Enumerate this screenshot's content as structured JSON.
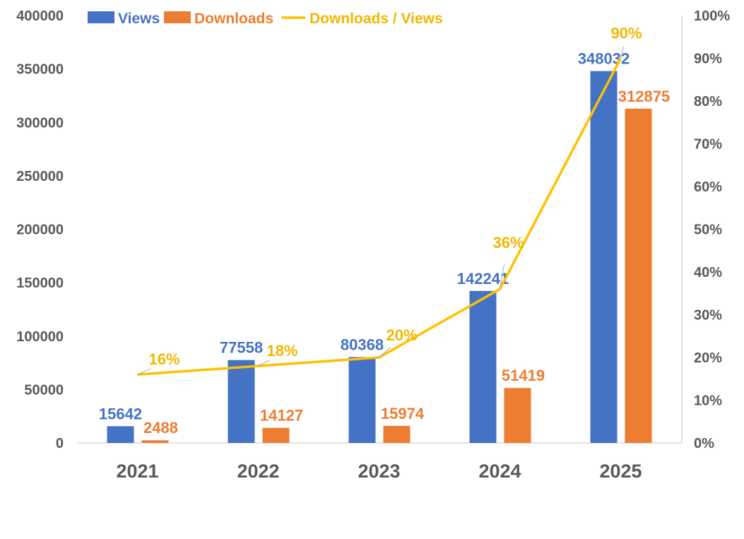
{
  "chart_data": {
    "type": "bar",
    "title": "",
    "categories": [
      "2021",
      "2022",
      "2023",
      "2024",
      "2025"
    ],
    "series": [
      {
        "name": "Views",
        "type": "bar",
        "axis": "left",
        "color": "#4472C4",
        "values": [
          15642,
          77558,
          80368,
          142241,
          348032
        ],
        "labels": [
          "15642",
          "77558",
          "80368",
          "142241",
          "348032"
        ]
      },
      {
        "name": "Downloads",
        "type": "bar",
        "axis": "left",
        "color": "#ED7D31",
        "values": [
          2488,
          14127,
          15974,
          51419,
          312875
        ],
        "labels": [
          "2488",
          "14127",
          "15974",
          "51419",
          "312875"
        ]
      },
      {
        "name": "Downloads / Views",
        "type": "line",
        "axis": "right",
        "color": "#FFC000",
        "values": [
          16,
          18,
          20,
          36,
          90
        ],
        "labels": [
          "16%",
          "18%",
          "20%",
          "36%",
          "90%"
        ]
      }
    ],
    "left_axis": {
      "ylim": [
        0,
        400000
      ],
      "ticks": [
        "0",
        "50000",
        "100000",
        "150000",
        "200000",
        "250000",
        "300000",
        "350000",
        "400000"
      ]
    },
    "right_axis": {
      "ylim": [
        0,
        100
      ],
      "ticks": [
        "0%",
        "10%",
        "20%",
        "30%",
        "40%",
        "50%",
        "60%",
        "70%",
        "80%",
        "90%",
        "100%"
      ]
    },
    "legend": {
      "placement": "top",
      "items": [
        "Views",
        "Downloads",
        "Downloads / Views"
      ]
    },
    "grid": false,
    "xlabel": "",
    "ylabel": ""
  }
}
